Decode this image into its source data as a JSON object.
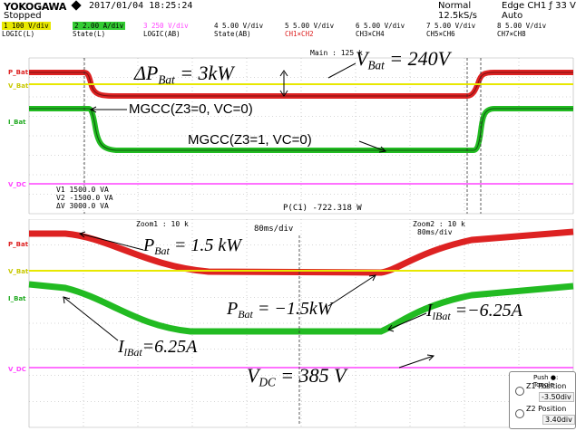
{
  "header": {
    "brand": "YOKOGAWA",
    "datetime": "2017/01/04 18:25:24",
    "status": "Stopped",
    "mode": "Normal",
    "sample_rate": "12.5kS/s",
    "trigger": "Edge CH1 ƒ 33 V",
    "trigger_mode": "Auto"
  },
  "channels": [
    {
      "id": "1",
      "scale": "100 V/div",
      "source": "LOGIC(L)",
      "color": "#e8e800"
    },
    {
      "id": "2",
      "scale": "2.00 A/div",
      "source": "State(L)",
      "color": "#33cc33"
    },
    {
      "id": "3",
      "scale": "250 V/div",
      "source": "LOGIC(AB)",
      "color": "#ff44ff"
    },
    {
      "id": "4",
      "scale": "5.00 V/div",
      "source": "State(AB)",
      "color": "#000000"
    },
    {
      "id": "5",
      "scale": "5.00 V/div",
      "source": "CH1×CH2",
      "color": "#dd2222"
    },
    {
      "id": "6",
      "scale": "5.00 V/div",
      "source": "CH3×CH4",
      "color": "#000000"
    },
    {
      "id": "7",
      "scale": "5.00 V/div",
      "source": "CH5×CH6",
      "color": "#000000"
    },
    {
      "id": "8",
      "scale": "5.00 V/div",
      "source": "CH7×CH8",
      "color": "#000000"
    }
  ],
  "trace_labels": {
    "p_bat_top": "P_Bat",
    "v_bat_top": "V_Bat",
    "i_bat_top": "I_Bat",
    "v_dc_top": "V_DC",
    "p_bat_bot": "P_Bat",
    "v_bat_bot": "V_Bat",
    "i_bat_bot": "I_Bat",
    "v_dc_bot": "V_DC"
  },
  "top_panel": {
    "main_label": "Main : 125 k",
    "cursor_v1": "V1   1500.0 VA",
    "cursor_v2": "V2  -1500.0 VA",
    "cursor_dv": "ΔV   3000.0 VA",
    "measure": "P(C1) -722.318 W"
  },
  "bottom_panel": {
    "zoom1": "Zoom1 : 10 k",
    "zoom2": "Zoom2 : 10 k",
    "timebase": "80ms/div",
    "timebase2": "80ms/div"
  },
  "annotations": {
    "delta_p": "ΔP",
    "delta_p_sub": "Bat",
    "delta_p_val": " = 3kW",
    "v_bat": "V",
    "v_bat_sub": "Bat",
    "v_bat_val": " = 240V",
    "mgcc1": "MGCC(Z3=0, VC=0)",
    "mgcc2": "MGCC(Z3=1, VC=0)",
    "p_bat_pos": "P",
    "p_bat_pos_sub": "Bat",
    "p_bat_pos_val": " = 1.5 kW",
    "p_bat_neg": "P",
    "p_bat_neg_sub": "Bat",
    "p_bat_neg_val": " = −1.5kW",
    "i_bat_neg": "I",
    "i_bat_neg_sub": "lBat",
    "i_bat_neg_val": " =−6.25A",
    "i_bat_pos": "I",
    "i_bat_pos_sub": "lBat",
    "i_bat_pos_val": "=6.25A",
    "v_dc": "V",
    "v_dc_sub": "DC",
    "v_dc_val": " =  385  V"
  },
  "zoom_box": {
    "push_label": "Push ●: Toggle",
    "z1_label": "Z1 Position",
    "z1_value": "-3.50div",
    "z2_label": "Z2 Position",
    "z2_value": "3.40div"
  },
  "colors": {
    "p_bat": "#dd2222",
    "v_bat": "#e8e800",
    "i_bat": "#22bb22",
    "v_dc": "#ff44ff",
    "grid": "#b0b0b0"
  }
}
